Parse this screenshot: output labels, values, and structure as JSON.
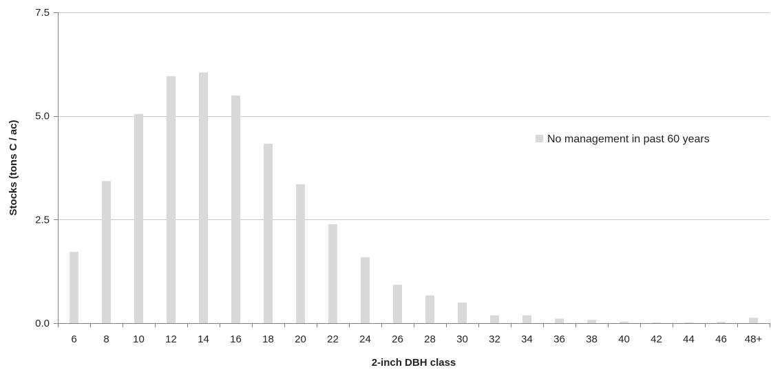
{
  "chart_data": {
    "type": "bar",
    "categories": [
      "6",
      "8",
      "10",
      "12",
      "14",
      "16",
      "18",
      "20",
      "22",
      "24",
      "26",
      "28",
      "30",
      "32",
      "34",
      "36",
      "38",
      "40",
      "42",
      "44",
      "46",
      "48+"
    ],
    "series": [
      {
        "name": "No management in past 60 years",
        "values": [
          1.72,
          3.43,
          5.05,
          5.96,
          6.05,
          5.49,
          4.33,
          3.35,
          2.39,
          1.59,
          0.93,
          0.67,
          0.5,
          0.19,
          0.19,
          0.11,
          0.08,
          0.04,
          0.02,
          0.02,
          0.03,
          0.13
        ]
      }
    ],
    "xlabel": "2-inch DBH class",
    "ylabel": "Stocks  (tons C / ac)",
    "ylim": [
      0,
      7.5
    ],
    "yticks": [
      0,
      2.5,
      5.0,
      7.5
    ],
    "ytick_labels": [
      "0.0",
      "2.5",
      "5.0",
      "7.5"
    ],
    "grid": "horizontal",
    "legend_position": "right",
    "colors": {
      "bar": "#d9d9d9",
      "grid": "#c8c8c8",
      "axis": "#808080"
    }
  }
}
